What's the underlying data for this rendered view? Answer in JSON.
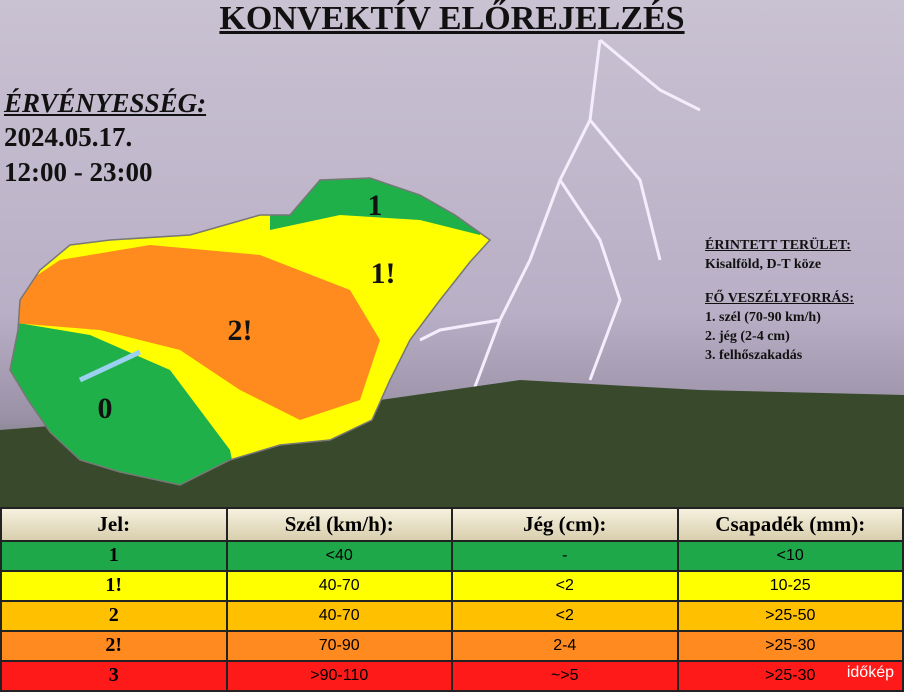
{
  "header": {
    "title": "KONVEKTÍV ELŐREJELZÉS",
    "validity_label": "ÉRVÉNYESSÉG:",
    "date": "2024.05.17.",
    "time": "12:00 - 23:00"
  },
  "map": {
    "zones": [
      "1",
      "1!",
      "2!",
      "0"
    ]
  },
  "info": {
    "area_label": "ÉRINTETT TERÜLET:",
    "area": "Kisalföld, D-T köze",
    "hazard_label": "FŐ VESZÉLYFORRÁS:",
    "hazards": [
      "1. szél (70-90 km/h)",
      "2. jég (2-4 cm)",
      "3. felhőszakadás"
    ]
  },
  "table": {
    "header": [
      "Jel:",
      "Szél (km/h):",
      "Jég (cm):",
      "Csapadék (mm):"
    ],
    "rows": [
      [
        "1",
        "<40",
        "-",
        "<10"
      ],
      [
        "1!",
        "40-70",
        "<2",
        "10-25"
      ],
      [
        "2",
        "40-70",
        "<2",
        ">25-50"
      ],
      [
        "2!",
        "70-90",
        "2-4",
        ">25-30"
      ],
      [
        "3",
        ">90-110",
        "~>5",
        ">25-30"
      ]
    ]
  },
  "logo": "időkép"
}
